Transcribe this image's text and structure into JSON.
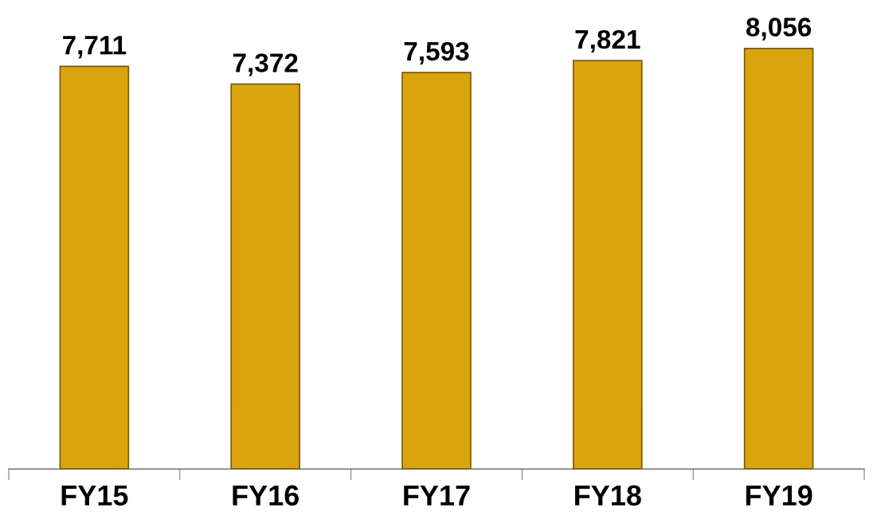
{
  "chart_data": {
    "type": "bar",
    "categories": [
      "FY15",
      "FY16",
      "FY17",
      "FY18",
      "FY19"
    ],
    "values": [
      7711,
      7372,
      7593,
      7821,
      8056
    ],
    "value_labels": [
      "7,711",
      "7,372",
      "7,593",
      "7,821",
      "8,056"
    ],
    "color": "#d9a40e",
    "grid": false,
    "legend": false
  }
}
